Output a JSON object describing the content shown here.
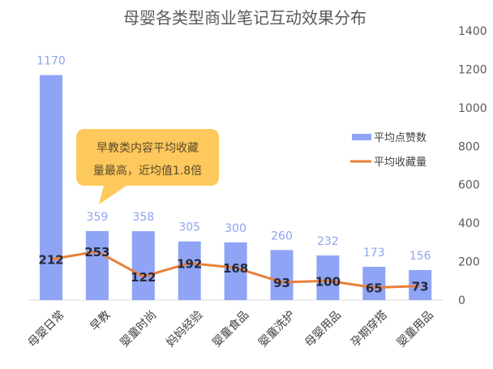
{
  "chart_data": {
    "type": "bar+line",
    "title": "母婴各类型商业笔记互动效果分布",
    "categories": [
      "母婴日常",
      "早教",
      "婴童时尚",
      "妈妈经验",
      "婴童食品",
      "婴童洗护",
      "母婴用品",
      "孕期穿搭",
      "婴童用品"
    ],
    "series": [
      {
        "name": "平均点赞数",
        "type": "bar",
        "color": "#8FA4F5",
        "label_color": "#8FA4EE",
        "values": [
          1170,
          359,
          358,
          305,
          300,
          260,
          232,
          173,
          156
        ]
      },
      {
        "name": "平均收藏量",
        "type": "line",
        "color": "#E8803A",
        "label_color": "#262A3B",
        "values": [
          212,
          253,
          122,
          192,
          168,
          93,
          100,
          65,
          73
        ]
      }
    ],
    "xlabel": "",
    "ylabel": "",
    "ylim": [
      0,
      1400
    ],
    "yticks": [
      0,
      200,
      400,
      600,
      800,
      1000,
      1200,
      1400
    ],
    "y_axis_position": "right",
    "grid": false,
    "legend_position": "right-middle",
    "annotations": [
      {
        "text_line1": "早教类内容平均收藏",
        "text_line2": "量最高，近均值1.8倍",
        "target": "早教",
        "background": "#FDC95C"
      }
    ]
  }
}
